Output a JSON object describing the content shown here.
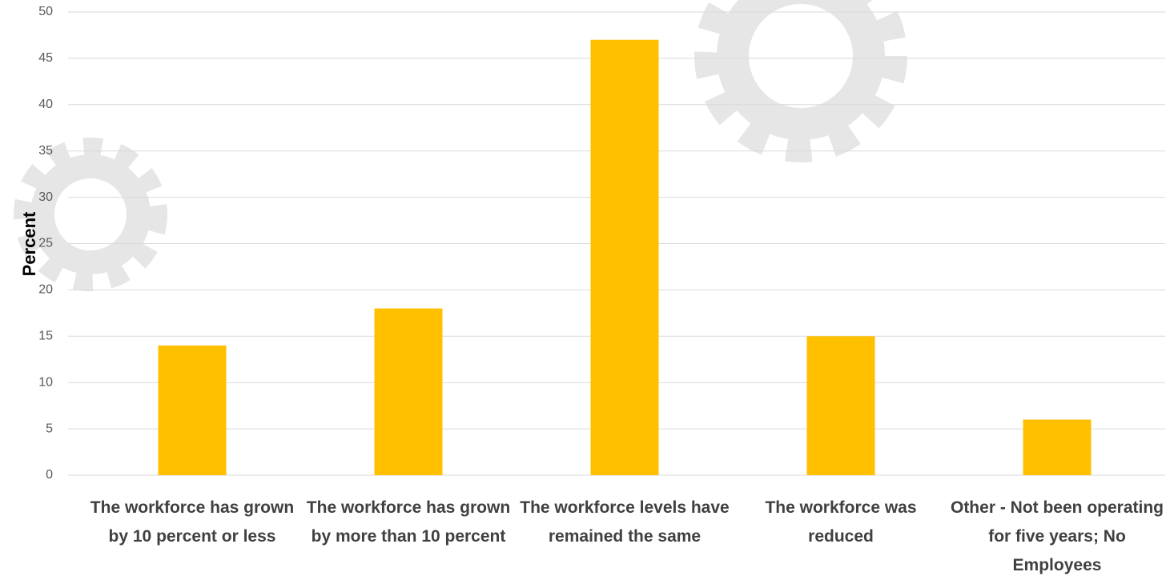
{
  "chart_data": {
    "type": "bar",
    "y_label": "Percent",
    "categories": [
      "The workforce has grown by 10 percent or less",
      "The workforce has grown by more than 10 percent",
      "The workforce levels have remained the same",
      "The workforce was reduced",
      "Other - Not been operating for five years; No Employees"
    ],
    "values": [
      14,
      18,
      47,
      15,
      6
    ],
    "color": "#ffc000",
    "ylim": [
      0,
      50
    ],
    "yticks": [
      0,
      5,
      10,
      15,
      20,
      25,
      30,
      35,
      40,
      45,
      50
    ],
    "grid": true
  }
}
